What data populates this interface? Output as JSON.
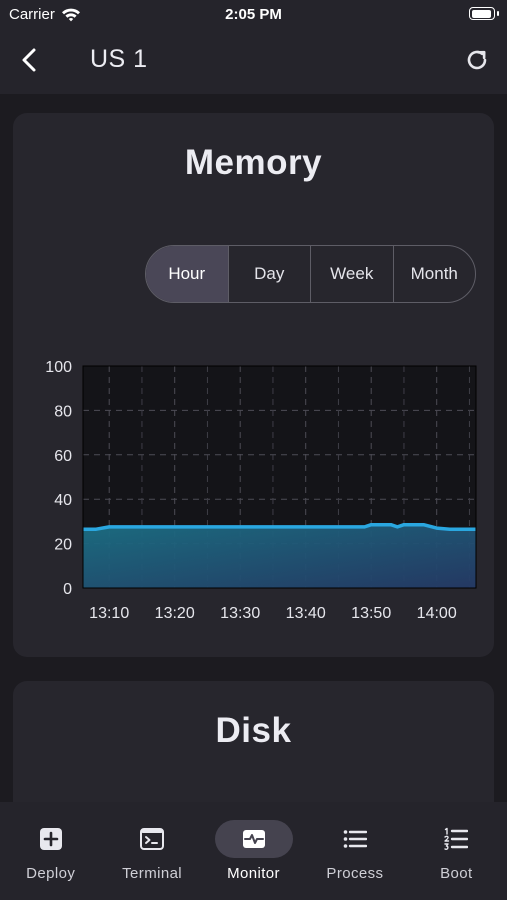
{
  "status_bar": {
    "carrier": "Carrier",
    "time": "2:05 PM",
    "wifi_icon": "wifi-icon",
    "battery_icon": "battery-icon"
  },
  "nav": {
    "title": "US 1",
    "back_icon": "chevron-left-icon",
    "refresh_icon": "refresh-icon"
  },
  "memory_card": {
    "title": "Memory",
    "segments": [
      {
        "label": "Hour",
        "selected": true
      },
      {
        "label": "Day",
        "selected": false
      },
      {
        "label": "Week",
        "selected": false
      },
      {
        "label": "Month",
        "selected": false
      }
    ]
  },
  "disk_card": {
    "title": "Disk"
  },
  "tabs": [
    {
      "label": "Deploy",
      "icon": "plus-square-icon",
      "active": false
    },
    {
      "label": "Terminal",
      "icon": "terminal-icon",
      "active": false
    },
    {
      "label": "Monitor",
      "icon": "pulse-icon",
      "active": true
    },
    {
      "label": "Process",
      "icon": "list-icon",
      "active": false
    },
    {
      "label": "Boot",
      "icon": "numbered-list-icon",
      "active": false
    }
  ],
  "colors": {
    "line": "#2aa7e0",
    "fill_top": "#1b6f84",
    "fill_bottom": "#253a66",
    "background": "#1c1b20",
    "card": "#27262d"
  },
  "chart_data": {
    "type": "area",
    "title": "",
    "xlabel": "",
    "ylabel": "",
    "ylim": [
      0,
      100
    ],
    "xlim": [
      "13:06",
      "14:06"
    ],
    "y_ticks": [
      "0",
      "20",
      "40",
      "60",
      "80",
      "100"
    ],
    "x_tick_labels": [
      "13:10",
      "13:20",
      "13:30",
      "13:40",
      "13:50",
      "14:00"
    ],
    "grid": true,
    "legend": "none",
    "series": [
      {
        "x": [
          "13:06",
          "13:08",
          "13:10",
          "13:15",
          "13:20",
          "13:25",
          "13:30",
          "13:35",
          "13:40",
          "13:45",
          "13:49",
          "13:50",
          "13:53",
          "13:54",
          "13:55",
          "13:58",
          "14:00",
          "14:02",
          "14:06"
        ],
        "values": [
          26.5,
          26.5,
          27.5,
          27.5,
          27.5,
          27.5,
          27.5,
          27.5,
          27.5,
          27.5,
          27.5,
          28.5,
          28.5,
          27.5,
          28.5,
          28.5,
          27,
          26.5,
          26.5
        ]
      }
    ]
  }
}
